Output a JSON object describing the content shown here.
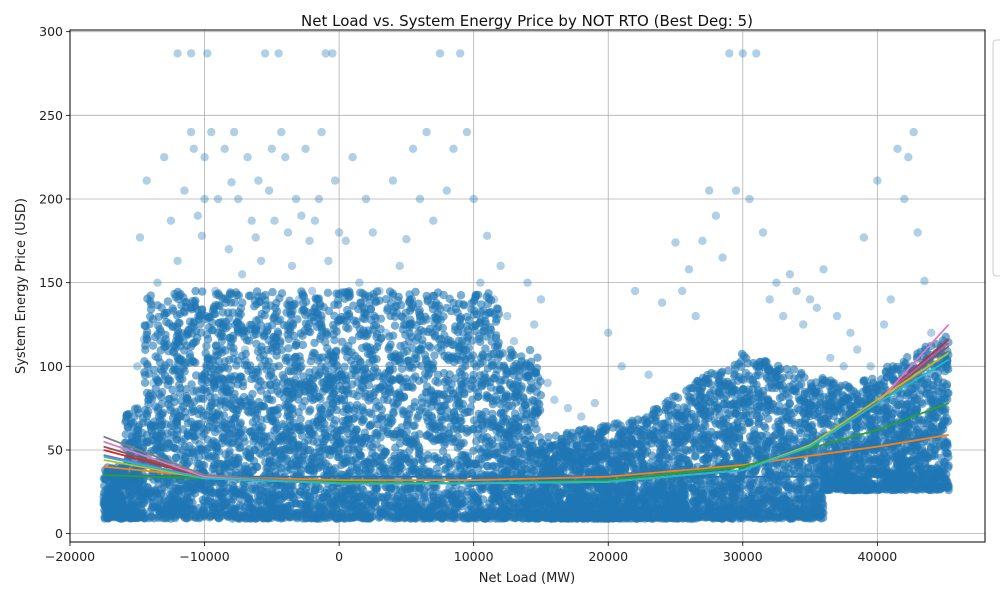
{
  "chart_data": {
    "type": "scatter",
    "title": "Net Load vs. System Energy Price by NOT RTO (Best Deg: 5)",
    "xlabel": "Net Load (MW)",
    "ylabel": "System Energy Price (USD)",
    "xlim": [
      -20000,
      48000
    ],
    "ylim": [
      -5,
      301
    ],
    "xticks": [
      -20000,
      -10000,
      0,
      10000,
      20000,
      30000,
      40000
    ],
    "xtick_labels": [
      "−20000",
      "−10000",
      "0",
      "10000",
      "20000",
      "30000",
      "40000"
    ],
    "yticks": [
      0,
      50,
      100,
      150,
      200,
      250,
      300
    ],
    "ytick_labels": [
      "0",
      "50",
      "100",
      "150",
      "200",
      "250",
      "300"
    ],
    "grid": true,
    "legend": "right (clipped)",
    "scatter_series": {
      "color": "#1f77b4",
      "alpha": 0.35,
      "points": [
        [
          -17500,
          33
        ],
        [
          -17000,
          30
        ],
        [
          -16500,
          28
        ],
        [
          -16000,
          52
        ],
        [
          -15500,
          45
        ],
        [
          -15000,
          75
        ],
        [
          -15000,
          100
        ],
        [
          -14800,
          177
        ],
        [
          -14500,
          116
        ],
        [
          -14300,
          211
        ],
        [
          -14000,
          62
        ],
        [
          -13800,
          90
        ],
        [
          -13500,
          150
        ],
        [
          -13000,
          225
        ],
        [
          -12800,
          132
        ],
        [
          -12500,
          187
        ],
        [
          -12000,
          287
        ],
        [
          -12000,
          163
        ],
        [
          -11800,
          105
        ],
        [
          -11500,
          205
        ],
        [
          -11000,
          287
        ],
        [
          -11000,
          240
        ],
        [
          -10800,
          230
        ],
        [
          -10500,
          190
        ],
        [
          -10200,
          178
        ],
        [
          -10000,
          200
        ],
        [
          -10000,
          225
        ],
        [
          -9800,
          287
        ],
        [
          -9500,
          240
        ],
        [
          -9200,
          145
        ],
        [
          -9000,
          200
        ],
        [
          -8800,
          120
        ],
        [
          -8500,
          230
        ],
        [
          -8200,
          170
        ],
        [
          -8000,
          210
        ],
        [
          -7800,
          240
        ],
        [
          -7500,
          200
        ],
        [
          -7200,
          155
        ],
        [
          -7000,
          110
        ],
        [
          -6800,
          225
        ],
        [
          -6500,
          187
        ],
        [
          -6200,
          177
        ],
        [
          -6000,
          211
        ],
        [
          -5800,
          163
        ],
        [
          -5500,
          287
        ],
        [
          -5200,
          205
        ],
        [
          -5000,
          230
        ],
        [
          -4800,
          187
        ],
        [
          -4500,
          287
        ],
        [
          -4300,
          240
        ],
        [
          -4000,
          225
        ],
        [
          -3800,
          180
        ],
        [
          -3500,
          160
        ],
        [
          -3200,
          200
        ],
        [
          -3000,
          140
        ],
        [
          -2800,
          190
        ],
        [
          -2500,
          230
        ],
        [
          -2200,
          175
        ],
        [
          -2000,
          145
        ],
        [
          -1800,
          187
        ],
        [
          -1500,
          200
        ],
        [
          -1300,
          240
        ],
        [
          -1000,
          287
        ],
        [
          -800,
          163
        ],
        [
          -500,
          287
        ],
        [
          -300,
          211
        ],
        [
          0,
          180
        ],
        [
          500,
          175
        ],
        [
          1000,
          225
        ],
        [
          1500,
          150
        ],
        [
          2000,
          200
        ],
        [
          2500,
          180
        ],
        [
          3000,
          145
        ],
        [
          3500,
          120
        ],
        [
          4000,
          211
        ],
        [
          4500,
          160
        ],
        [
          5000,
          176
        ],
        [
          5500,
          230
        ],
        [
          6000,
          200
        ],
        [
          6500,
          240
        ],
        [
          7000,
          187
        ],
        [
          7500,
          287
        ],
        [
          8000,
          205
        ],
        [
          8500,
          230
        ],
        [
          9000,
          287
        ],
        [
          9500,
          240
        ],
        [
          10000,
          200
        ],
        [
          10500,
          150
        ],
        [
          11000,
          178
        ],
        [
          11500,
          140
        ],
        [
          12000,
          160
        ],
        [
          12500,
          130
        ],
        [
          13000,
          115
        ],
        [
          13500,
          100
        ],
        [
          14000,
          150
        ],
        [
          14500,
          125
        ],
        [
          15000,
          140
        ],
        [
          15500,
          90
        ],
        [
          16000,
          80
        ],
        [
          17000,
          75
        ],
        [
          18000,
          70
        ],
        [
          19000,
          78
        ],
        [
          20000,
          120
        ],
        [
          21000,
          100
        ],
        [
          22000,
          145
        ],
        [
          23000,
          95
        ],
        [
          24000,
          138
        ],
        [
          25000,
          174
        ],
        [
          25500,
          145
        ],
        [
          26000,
          158
        ],
        [
          26500,
          130
        ],
        [
          27000,
          175
        ],
        [
          27500,
          205
        ],
        [
          28000,
          190
        ],
        [
          28500,
          165
        ],
        [
          29000,
          287
        ],
        [
          29500,
          205
        ],
        [
          30000,
          287
        ],
        [
          30500,
          200
        ],
        [
          31000,
          287
        ],
        [
          31500,
          180
        ],
        [
          32000,
          140
        ],
        [
          32500,
          150
        ],
        [
          33000,
          130
        ],
        [
          33500,
          155
        ],
        [
          34000,
          145
        ],
        [
          34500,
          125
        ],
        [
          35000,
          140
        ],
        [
          35500,
          135
        ],
        [
          36000,
          158
        ],
        [
          36500,
          105
        ],
        [
          37000,
          130
        ],
        [
          37500,
          100
        ],
        [
          38000,
          120
        ],
        [
          38500,
          110
        ],
        [
          39000,
          177
        ],
        [
          39500,
          100
        ],
        [
          40000,
          211
        ],
        [
          40500,
          125
        ],
        [
          41000,
          140
        ],
        [
          41500,
          230
        ],
        [
          42000,
          200
        ],
        [
          42300,
          225
        ],
        [
          42700,
          240
        ],
        [
          43000,
          180
        ],
        [
          43500,
          151
        ],
        [
          44000,
          120
        ],
        [
          44500,
          100
        ],
        [
          45000,
          65
        ]
      ]
    },
    "series": [
      {
        "name": "",
        "color": "#1f77b4",
        "x": [
          -17500,
          -10000,
          0,
          10000,
          20000,
          30000,
          40000,
          45300
        ],
        "y": [
          35,
          34,
          34,
          34,
          34,
          34,
          34,
          34
        ]
      },
      {
        "name": "",
        "color": "#ff7f0e",
        "x": [
          -17500,
          -10000,
          0,
          10000,
          20000,
          30000,
          40000,
          45300
        ],
        "y": [
          40,
          34,
          32,
          32,
          34,
          41,
          52,
          59
        ]
      },
      {
        "name": "",
        "color": "#2ca02c",
        "x": [
          -17500,
          -10000,
          0,
          10000,
          20000,
          30000,
          40000,
          45300
        ],
        "y": [
          35,
          33,
          31,
          30,
          32,
          40,
          62,
          78
        ]
      },
      {
        "name": "",
        "color": "#d62728",
        "x": [
          -17500,
          -10000,
          0,
          10000,
          20000,
          30000,
          35000,
          40000,
          45300
        ],
        "y": [
          50,
          34,
          30,
          30,
          31,
          38,
          53,
          80,
          116
        ]
      },
      {
        "name": "",
        "color": "#9467bd",
        "x": [
          -17500,
          -10000,
          0,
          10000,
          20000,
          30000,
          35000,
          40000,
          45300
        ],
        "y": [
          47,
          33,
          30,
          30,
          31,
          38,
          53,
          80,
          114
        ]
      },
      {
        "name": "",
        "color": "#8c564b",
        "x": [
          -17500,
          -10000,
          0,
          10000,
          20000,
          30000,
          35000,
          40000,
          45300
        ],
        "y": [
          52,
          34,
          30,
          30,
          31,
          38,
          53,
          79,
          112
        ]
      },
      {
        "name": "",
        "color": "#e377c2",
        "x": [
          -17500,
          -10000,
          0,
          10000,
          20000,
          30000,
          35000,
          40000,
          45300
        ],
        "y": [
          55,
          34,
          30,
          30,
          31,
          38,
          52,
          78,
          125
        ]
      },
      {
        "name": "",
        "color": "#7f7f7f",
        "x": [
          -17500,
          -10000,
          0,
          10000,
          20000,
          30000,
          35000,
          40000,
          45300
        ],
        "y": [
          58,
          35,
          30,
          30,
          31,
          38,
          52,
          78,
          108
        ]
      },
      {
        "name": "",
        "color": "#bcbd22",
        "x": [
          -17500,
          -10000,
          0,
          10000,
          20000,
          30000,
          35000,
          40000,
          45300
        ],
        "y": [
          44,
          33,
          30,
          30,
          31,
          38,
          53,
          80,
          108
        ]
      },
      {
        "name": "",
        "color": "#17becf",
        "x": [
          -17500,
          -10000,
          0,
          10000,
          20000,
          30000,
          35000,
          40000,
          45300
        ],
        "y": [
          46,
          33,
          30,
          30,
          31,
          38,
          52,
          78,
          104
        ]
      }
    ]
  }
}
